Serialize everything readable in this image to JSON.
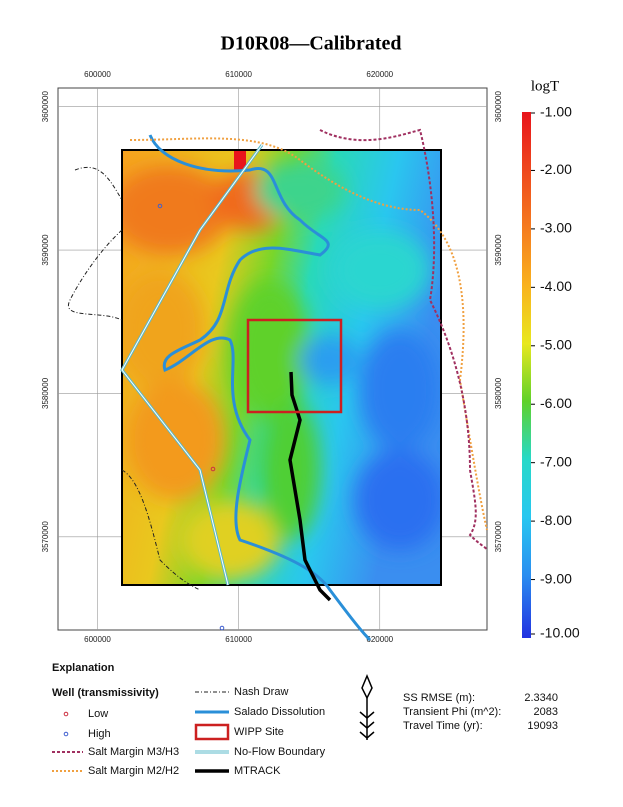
{
  "title": "D10R08—Calibrated",
  "map": {
    "easting_ticks": [
      600000,
      610000,
      620000
    ],
    "northing_ticks": [
      3600000,
      3590000,
      3580000,
      3570000
    ],
    "xlim": [
      597200,
      627600
    ],
    "ylim": [
      3563500,
      3601300
    ]
  },
  "colorbar": {
    "label": "logT",
    "lim": [
      -10,
      -1
    ],
    "ticks": [
      {
        "value": -1,
        "label": "-1.00"
      },
      {
        "value": -2,
        "label": "-2.00"
      },
      {
        "value": -3,
        "label": "-3.00"
      },
      {
        "value": -4,
        "label": "-4.00"
      },
      {
        "value": -5,
        "label": "-5.00"
      },
      {
        "value": -6,
        "label": "-6.00"
      },
      {
        "value": -7,
        "label": "-7.00"
      },
      {
        "value": -8,
        "label": "-8.00"
      },
      {
        "value": -9,
        "label": "-9.00"
      },
      {
        "value": -10,
        "label": "-10.00"
      }
    ]
  },
  "legend": {
    "title": "Explanation",
    "well_header": "Well (transmissivity)",
    "items": [
      "Low",
      "High",
      "Salt Margin M3/H3",
      "Salt Margin M2/H2",
      "Nash Draw",
      "Salado Dissolution",
      "WIPP Site",
      "No-Flow Boundary",
      "MTRACK"
    ]
  },
  "stats": [
    {
      "label": "SS RMSE (m):",
      "value": "2.3340"
    },
    {
      "label": "Transient Phi (m^2):",
      "value": "2083"
    },
    {
      "label": "Travel Time (yr):",
      "value": "19093"
    }
  ]
}
